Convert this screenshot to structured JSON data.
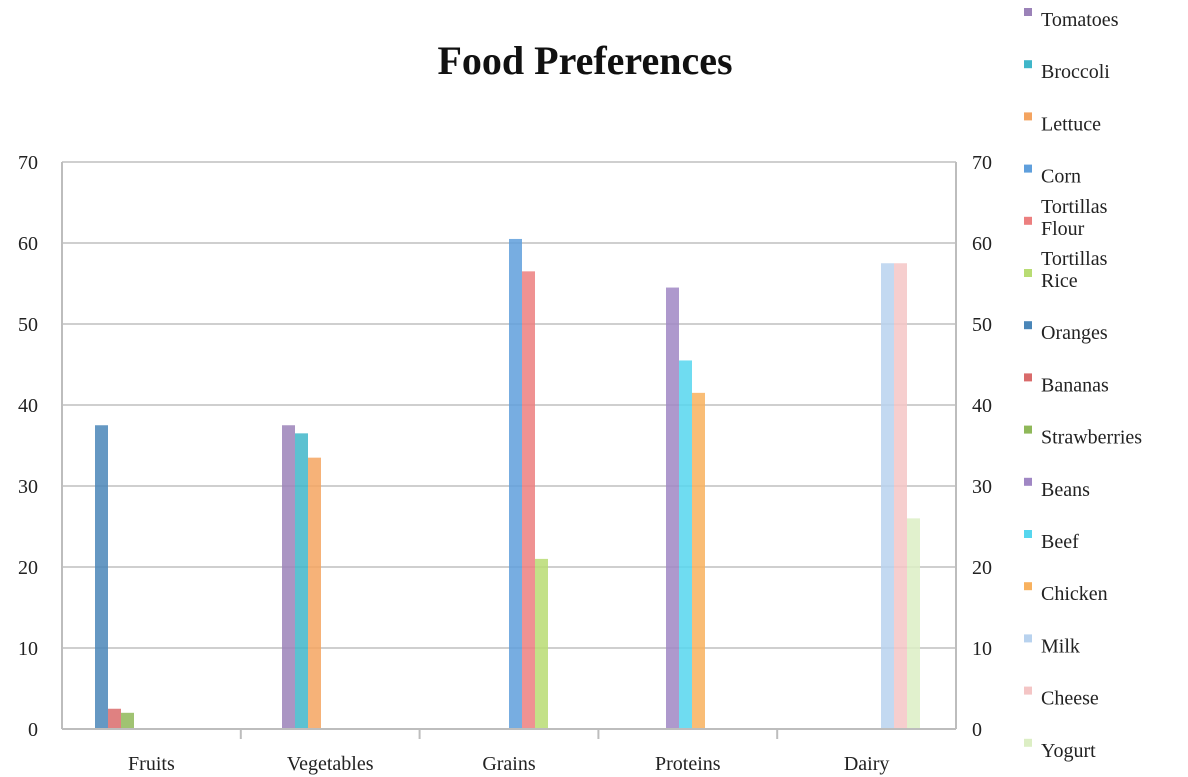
{
  "chart_data": {
    "type": "bar",
    "title": "Food Preferences",
    "xlabel": "",
    "ylabel": "",
    "ylim": [
      0,
      70
    ],
    "yticks": [
      0,
      10,
      20,
      30,
      40,
      50,
      60,
      70
    ],
    "secondary_y_axis": true,
    "grid": true,
    "legend_placement": "right",
    "categories": [
      "Fruits",
      "Vegetables",
      "Grains",
      "Proteins",
      "Dairy"
    ],
    "series": [
      {
        "name": "Tomatoes",
        "color": "#9b82b8",
        "values": [
          null,
          37.5,
          null,
          null,
          null
        ]
      },
      {
        "name": "Broccoli",
        "color": "#3fb6c9",
        "values": [
          null,
          36.5,
          null,
          null,
          null
        ]
      },
      {
        "name": "Lettuce",
        "color": "#f4a460",
        "values": [
          null,
          33.5,
          null,
          null,
          null
        ]
      },
      {
        "name": "Corn Tortillas",
        "color": "#5f9fdc",
        "values": [
          null,
          null,
          60.5,
          null,
          null
        ]
      },
      {
        "name": "Flour Tortillas",
        "color": "#ec7f7f",
        "values": [
          null,
          null,
          56.5,
          null,
          null
        ]
      },
      {
        "name": "Rice",
        "color": "#b8dc73",
        "values": [
          null,
          null,
          21,
          null,
          null
        ]
      },
      {
        "name": "Oranges",
        "color": "#4a86b8",
        "values": [
          37.5,
          null,
          null,
          null,
          null
        ]
      },
      {
        "name": "Bananas",
        "color": "#d96b6b",
        "values": [
          2.5,
          null,
          null,
          null,
          null
        ]
      },
      {
        "name": "Strawberries",
        "color": "#8fb859",
        "values": [
          2,
          null,
          null,
          null,
          null
        ]
      },
      {
        "name": "Beans",
        "color": "#a087c4",
        "values": [
          null,
          null,
          null,
          54.5,
          null
        ]
      },
      {
        "name": "Beef",
        "color": "#56d6ee",
        "values": [
          null,
          null,
          null,
          45.5,
          null
        ]
      },
      {
        "name": "Chicken",
        "color": "#f8b15e",
        "values": [
          null,
          null,
          null,
          41.5,
          null
        ]
      },
      {
        "name": "Milk",
        "color": "#b8d2ee",
        "values": [
          null,
          null,
          null,
          null,
          57.5
        ]
      },
      {
        "name": "Cheese",
        "color": "#f4c5c5",
        "values": [
          null,
          null,
          null,
          null,
          57.5
        ]
      },
      {
        "name": "Yogurt",
        "color": "#dceec4",
        "values": [
          null,
          null,
          null,
          null,
          26
        ]
      }
    ],
    "legend": [
      [
        "Tomatoes"
      ],
      [
        "Broccoli"
      ],
      [
        "Lettuce"
      ],
      [
        "Corn"
      ],
      [
        "Tortillas",
        "Flour"
      ],
      [
        "Tortillas",
        "Rice"
      ],
      [
        "Oranges"
      ],
      [
        "Bananas"
      ],
      [
        "Strawberries"
      ],
      [
        "Beans"
      ],
      [
        "Beef"
      ],
      [
        "Chicken"
      ],
      [
        "Milk"
      ],
      [
        "Cheese"
      ],
      [
        "Yogurt"
      ]
    ],
    "legend_colors": [
      "#9b82b8",
      "#3fb6c9",
      "#f4a460",
      "#5f9fdc",
      "#ec7f7f",
      "#b8dc73",
      "#4a86b8",
      "#d96b6b",
      "#8fb859",
      "#a087c4",
      "#56d6ee",
      "#f8b15e",
      "#b8d2ee",
      "#f4c5c5",
      "#dceec4"
    ]
  }
}
